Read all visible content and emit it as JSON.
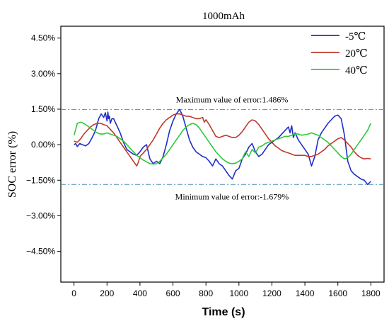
{
  "chart_data": {
    "type": "line",
    "title": "1000mAh",
    "xlabel": "Time (s)",
    "ylabel": "SOC error (%)",
    "xlim": [
      -80,
      1880
    ],
    "ylim": [
      -5.8,
      5.0
    ],
    "xticks": [
      0,
      200,
      400,
      600,
      800,
      1000,
      1200,
      1400,
      1600,
      1800
    ],
    "yticks": [
      -4.5,
      -3.0,
      -1.5,
      0.0,
      1.5,
      3.0,
      4.5
    ],
    "ytick_labels": [
      "−4.50%",
      "−3.00%",
      "−1.50%",
      "0.00%",
      "1.50%",
      "3.00%",
      "4.50%"
    ],
    "grid": false,
    "legend_position": "top-right",
    "reference_lines": [
      {
        "label": "Maximum value of error:1.486%",
        "value": 1.486,
        "color": "#d35fd3"
      },
      {
        "label": "Minimum value of error:-1.679%",
        "value": -1.679,
        "color": "#4a8fb5"
      }
    ],
    "series": [
      {
        "name": "-5℃",
        "color": "#1f2fc8",
        "x": [
          0,
          10,
          20,
          35,
          50,
          70,
          90,
          110,
          130,
          150,
          165,
          180,
          190,
          200,
          205,
          210,
          215,
          220,
          230,
          240,
          260,
          280,
          300,
          320,
          340,
          360,
          380,
          400,
          420,
          440,
          460,
          480,
          500,
          520,
          540,
          560,
          580,
          600,
          620,
          640,
          660,
          680,
          700,
          720,
          740,
          760,
          780,
          800,
          820,
          840,
          860,
          880,
          900,
          920,
          940,
          960,
          980,
          1000,
          1020,
          1040,
          1060,
          1080,
          1100,
          1120,
          1140,
          1160,
          1180,
          1200,
          1220,
          1240,
          1260,
          1280,
          1300,
          1310,
          1320,
          1330,
          1340,
          1360,
          1380,
          1400,
          1420,
          1440,
          1460,
          1480,
          1500,
          1520,
          1540,
          1560,
          1580,
          1600,
          1620,
          1640,
          1660,
          1680,
          1700,
          1720,
          1740,
          1760,
          1780,
          1800
        ],
        "y": [
          0.0,
          0.05,
          -0.08,
          0.05,
          0.0,
          -0.05,
          0.05,
          0.3,
          0.6,
          1.1,
          1.3,
          1.15,
          1.35,
          1.0,
          1.38,
          1.1,
          1.2,
          0.9,
          1.1,
          1.1,
          0.8,
          0.5,
          0.1,
          -0.2,
          -0.3,
          -0.4,
          -0.45,
          -0.3,
          -0.1,
          0.0,
          -0.6,
          -0.8,
          -0.7,
          -0.8,
          -0.5,
          0.0,
          0.6,
          1.0,
          1.3,
          1.49,
          1.2,
          0.7,
          0.2,
          -0.1,
          -0.3,
          -0.4,
          -0.5,
          -0.55,
          -0.7,
          -0.9,
          -0.6,
          -0.8,
          -0.9,
          -1.1,
          -1.3,
          -1.45,
          -1.1,
          -1.0,
          -0.6,
          -0.4,
          -0.1,
          0.05,
          -0.3,
          -0.5,
          -0.4,
          -0.2,
          0.0,
          0.1,
          0.2,
          0.3,
          0.45,
          0.6,
          0.75,
          0.5,
          0.8,
          0.3,
          0.5,
          0.2,
          0.0,
          -0.2,
          -0.4,
          -0.9,
          -0.5,
          0.2,
          0.5,
          0.7,
          0.9,
          1.05,
          1.2,
          1.25,
          1.1,
          0.4,
          -0.7,
          -1.1,
          -1.25,
          -1.35,
          -1.45,
          -1.5,
          -1.68,
          -1.55
        ]
      },
      {
        "name": "20℃",
        "color": "#c0392b",
        "x": [
          0,
          20,
          40,
          60,
          80,
          100,
          120,
          140,
          160,
          180,
          200,
          220,
          240,
          260,
          280,
          300,
          320,
          340,
          360,
          380,
          390,
          400,
          420,
          440,
          460,
          480,
          500,
          520,
          540,
          560,
          580,
          600,
          620,
          640,
          660,
          680,
          700,
          720,
          740,
          760,
          780,
          790,
          800,
          820,
          840,
          860,
          880,
          900,
          920,
          940,
          960,
          980,
          1000,
          1020,
          1040,
          1060,
          1080,
          1100,
          1120,
          1140,
          1160,
          1180,
          1200,
          1220,
          1240,
          1260,
          1280,
          1300,
          1320,
          1340,
          1360,
          1380,
          1400,
          1420,
          1440,
          1460,
          1480,
          1500,
          1520,
          1540,
          1560,
          1580,
          1600,
          1620,
          1640,
          1660,
          1680,
          1700,
          1720,
          1740,
          1760,
          1780,
          1800
        ],
        "y": [
          0.15,
          0.1,
          0.25,
          0.45,
          0.6,
          0.75,
          0.85,
          0.9,
          0.9,
          0.85,
          0.8,
          0.65,
          0.5,
          0.3,
          0.1,
          -0.1,
          -0.3,
          -0.5,
          -0.7,
          -0.9,
          -0.75,
          -0.5,
          -0.35,
          -0.2,
          0.0,
          0.2,
          0.45,
          0.7,
          0.9,
          1.05,
          1.15,
          1.25,
          1.3,
          1.3,
          1.25,
          1.2,
          1.2,
          1.15,
          1.1,
          1.1,
          1.15,
          0.95,
          1.05,
          0.85,
          0.6,
          0.35,
          0.3,
          0.35,
          0.4,
          0.35,
          0.3,
          0.3,
          0.4,
          0.55,
          0.75,
          0.95,
          1.05,
          1.0,
          0.85,
          0.65,
          0.45,
          0.25,
          0.1,
          -0.05,
          -0.15,
          -0.25,
          -0.3,
          -0.35,
          -0.4,
          -0.45,
          -0.45,
          -0.45,
          -0.45,
          -0.5,
          -0.5,
          -0.45,
          -0.4,
          -0.3,
          -0.2,
          -0.05,
          0.05,
          0.15,
          0.25,
          0.3,
          0.2,
          0.05,
          -0.1,
          -0.3,
          -0.45,
          -0.55,
          -0.6,
          -0.58,
          -0.6
        ]
      },
      {
        "name": "40℃",
        "color": "#2fc93a",
        "x": [
          0,
          20,
          40,
          60,
          80,
          100,
          120,
          140,
          160,
          180,
          200,
          220,
          240,
          260,
          280,
          300,
          320,
          340,
          360,
          380,
          400,
          420,
          440,
          460,
          480,
          500,
          520,
          540,
          560,
          580,
          600,
          620,
          640,
          660,
          680,
          700,
          720,
          740,
          760,
          780,
          800,
          820,
          840,
          860,
          880,
          900,
          920,
          940,
          960,
          980,
          1000,
          1020,
          1040,
          1060,
          1080,
          1100,
          1120,
          1140,
          1160,
          1180,
          1200,
          1220,
          1240,
          1260,
          1280,
          1300,
          1320,
          1340,
          1360,
          1380,
          1400,
          1420,
          1440,
          1460,
          1480,
          1500,
          1520,
          1540,
          1560,
          1580,
          1600,
          1620,
          1640,
          1660,
          1680,
          1700,
          1720,
          1740,
          1760,
          1780,
          1800
        ],
        "y": [
          0.4,
          0.9,
          0.95,
          0.9,
          0.8,
          0.7,
          0.6,
          0.5,
          0.45,
          0.45,
          0.5,
          0.45,
          0.4,
          0.35,
          0.25,
          0.15,
          0.0,
          -0.15,
          -0.3,
          -0.45,
          -0.55,
          -0.65,
          -0.72,
          -0.8,
          -0.82,
          -0.8,
          -0.7,
          -0.55,
          -0.4,
          -0.2,
          0.0,
          0.2,
          0.4,
          0.6,
          0.75,
          0.85,
          0.9,
          0.85,
          0.7,
          0.5,
          0.3,
          0.1,
          -0.1,
          -0.3,
          -0.45,
          -0.6,
          -0.7,
          -0.78,
          -0.8,
          -0.78,
          -0.7,
          -0.6,
          -0.3,
          -0.5,
          -0.2,
          -0.35,
          -0.1,
          -0.05,
          0.05,
          0.1,
          0.15,
          0.2,
          0.25,
          0.3,
          0.35,
          0.35,
          0.4,
          0.45,
          0.45,
          0.4,
          0.42,
          0.45,
          0.5,
          0.45,
          0.4,
          0.3,
          0.2,
          0.1,
          -0.05,
          -0.2,
          -0.35,
          -0.5,
          -0.6,
          -0.55,
          -0.4,
          -0.2,
          0.0,
          0.2,
          0.4,
          0.6,
          0.9
        ]
      }
    ]
  }
}
